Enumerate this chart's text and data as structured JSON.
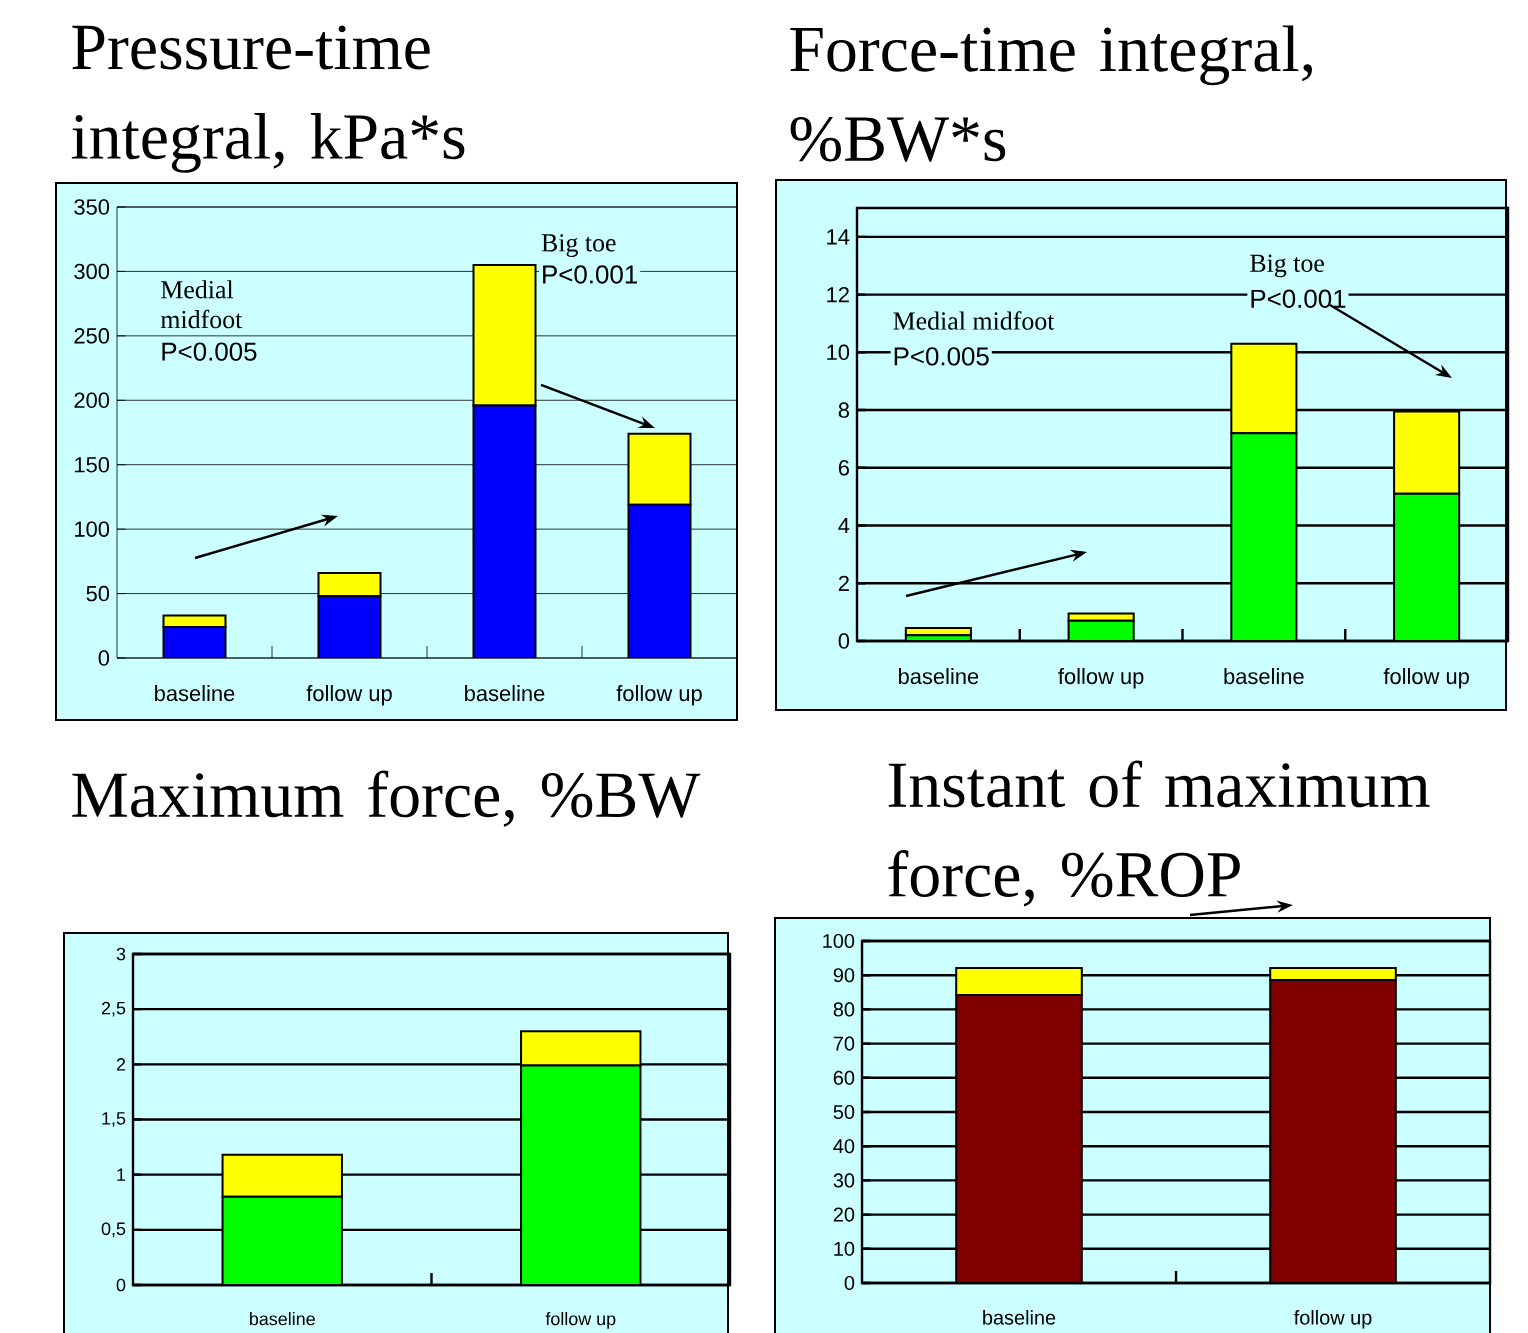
{
  "chart_data": [
    {
      "type": "bar",
      "stacked": true,
      "title": "Pressure-time integral, kPa*s",
      "categories": [
        "baseline",
        "follow up",
        "baseline",
        "follow up"
      ],
      "series": [
        {
          "color": "#0000ff",
          "values": [
            24,
            48,
            196,
            119
          ]
        },
        {
          "color": "#ffff00",
          "values": [
            9,
            18,
            109,
            55
          ]
        }
      ],
      "ylim": [
        0,
        350
      ],
      "yticks": [
        0,
        50,
        100,
        150,
        200,
        250,
        300,
        350
      ],
      "grid": "y",
      "annotations": [
        "Medial midfoot",
        "P<0.005",
        "Big toe",
        "P<0.001"
      ]
    },
    {
      "type": "bar",
      "stacked": true,
      "title": "Force-time integral, %BW*s",
      "categories": [
        "baseline",
        "follow up",
        "baseline",
        "follow up"
      ],
      "series": [
        {
          "color": "#00ff00",
          "values": [
            0.2,
            0.7,
            7.2,
            5.1
          ]
        },
        {
          "color": "#ffff00",
          "values": [
            0.25,
            0.25,
            3.1,
            2.85
          ]
        }
      ],
      "ylim": [
        0,
        15
      ],
      "yticks": [
        0,
        2,
        4,
        6,
        8,
        10,
        12,
        14
      ],
      "grid": "y",
      "annotations": [
        "Medial midfoot",
        "P<0.005",
        "Big toe",
        "P<0.001"
      ]
    },
    {
      "type": "bar",
      "stacked": true,
      "title": "Maximum force,  %BW",
      "categories": [
        "baseline",
        "follow up"
      ],
      "series": [
        {
          "color": "#00ff00",
          "values": [
            0.8,
            1.99
          ]
        },
        {
          "color": "#ffff00",
          "values": [
            0.38,
            0.31
          ]
        }
      ],
      "ylim": [
        0,
        3
      ],
      "yticks": [
        0,
        {
          "value": 0.5,
          "label": "0,5"
        },
        1,
        {
          "value": 1.5,
          "label": "1,5"
        },
        2,
        {
          "value": 2.5,
          "label": "2,5"
        },
        3
      ],
      "grid": "y"
    },
    {
      "type": "bar",
      "stacked": true,
      "title": "Instant of maximum force, %ROP",
      "categories": [
        "baseline",
        "follow up"
      ],
      "series": [
        {
          "color": "#800000",
          "values": [
            84.2,
            88.6
          ]
        },
        {
          "color": "#ffff00",
          "values": [
            7.9,
            3.5
          ]
        }
      ],
      "ylim": [
        0,
        100
      ],
      "yticks": [
        0,
        10,
        20,
        30,
        40,
        50,
        60,
        70,
        80,
        90,
        100
      ],
      "grid": "y"
    }
  ]
}
